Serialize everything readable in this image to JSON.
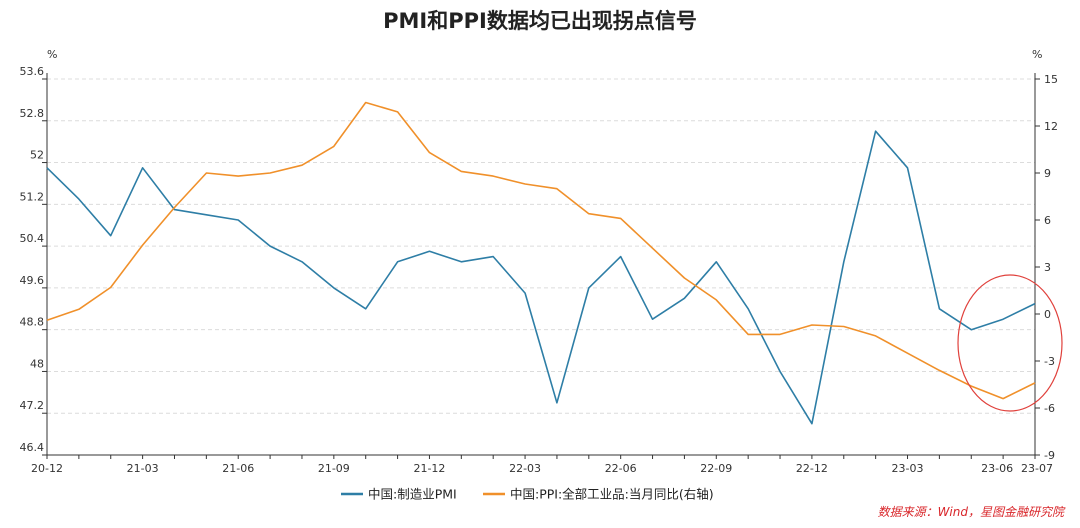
{
  "chart_data": {
    "type": "line",
    "title": "PMI和PPI数据均已出现拐点信号",
    "left_unit": "%",
    "right_unit": "%",
    "x": [
      "20-12",
      "21-01",
      "21-02",
      "21-03",
      "21-04",
      "21-05",
      "21-06",
      "21-07",
      "21-08",
      "21-09",
      "21-10",
      "21-11",
      "21-12",
      "22-01",
      "22-02",
      "22-03",
      "22-04",
      "22-05",
      "22-06",
      "22-07",
      "22-08",
      "22-09",
      "22-10",
      "22-11",
      "22-12",
      "23-01",
      "23-02",
      "23-03",
      "23-04",
      "23-05",
      "23-06",
      "23-07"
    ],
    "x_tick_labels": [
      "20-12",
      "21-03",
      "21-06",
      "21-09",
      "21-12",
      "22-03",
      "22-06",
      "22-09",
      "22-12",
      "23-03",
      "23-06",
      "23-07"
    ],
    "ylim_left": [
      46.4,
      53.6
    ],
    "yticks_left": [
      "53.6",
      "52.8",
      "52",
      "51.2",
      "50.4",
      "49.6",
      "48.8",
      "48",
      "47.2",
      "46.4"
    ],
    "ylim_right": [
      -9,
      15
    ],
    "yticks_right": [
      "15",
      "12",
      "9",
      "6",
      "3",
      "0",
      "-3",
      "-6",
      "-9"
    ],
    "grid": true,
    "legend_position": "bottom",
    "series": [
      {
        "name": "中国:制造业PMI",
        "axis": "left",
        "color": "#2e7ea6",
        "values": [
          51.9,
          51.3,
          50.6,
          51.9,
          51.1,
          51.0,
          50.9,
          50.4,
          50.1,
          49.6,
          49.2,
          50.1,
          50.3,
          50.1,
          50.2,
          49.5,
          47.4,
          49.6,
          50.2,
          49.0,
          49.4,
          50.1,
          49.2,
          48.0,
          47.0,
          50.1,
          52.6,
          51.9,
          49.2,
          48.8,
          49.0,
          49.3
        ]
      },
      {
        "name": "中国:PPI:全部工业品:当月同比(右轴)",
        "axis": "right",
        "color": "#f0902a",
        "values": [
          -0.4,
          0.3,
          1.7,
          4.4,
          6.8,
          9.0,
          8.8,
          9.0,
          9.5,
          10.7,
          13.5,
          12.9,
          10.3,
          9.1,
          8.8,
          8.3,
          8.0,
          6.4,
          6.1,
          4.2,
          2.3,
          0.9,
          -1.3,
          -1.3,
          -0.7,
          -0.8,
          -1.4,
          -2.5,
          -3.6,
          -4.6,
          -5.4,
          -4.4
        ]
      }
    ],
    "annotation": "数据来源：Wind，星图金融研究院",
    "highlight_circle_color": "#e0413c"
  }
}
